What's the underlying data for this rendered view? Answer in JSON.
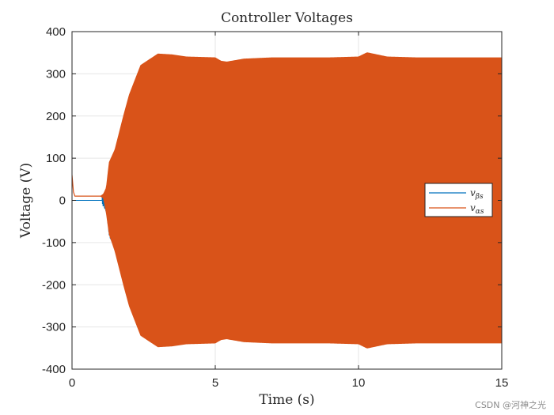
{
  "chart_data": {
    "type": "line",
    "title": "Controller Voltages",
    "xlabel": "Time (s)",
    "ylabel": "Voltage (V)",
    "xlim": [
      0,
      15
    ],
    "ylim": [
      -400,
      400
    ],
    "x_ticks": [
      0,
      5,
      10,
      15
    ],
    "y_ticks": [
      -400,
      -300,
      -200,
      -100,
      0,
      100,
      200,
      300,
      400
    ],
    "grid": true,
    "legend_position": "right",
    "series": [
      {
        "name": "v_βs",
        "color": "#0072BD",
        "description_points": {
          "t": [
            0,
            1.05,
            1.15,
            1.25,
            1.3,
            1.5
          ],
          "v": [
            0,
            0,
            10,
            -40,
            60,
            100
          ]
        }
      },
      {
        "name": "v_αs",
        "color": "#D95319",
        "envelope": {
          "t": [
            0,
            0.05,
            0.1,
            1.0,
            1.1,
            1.2,
            1.3,
            1.5,
            1.8,
            2.0,
            2.4,
            3.0,
            3.5,
            4.0,
            5.0,
            5.2,
            5.4,
            6.0,
            7.0,
            9.0,
            10.0,
            10.3,
            11.0,
            12.0,
            15.0
          ],
          "upper": [
            60,
            20,
            10,
            10,
            15,
            30,
            90,
            120,
            200,
            250,
            320,
            347,
            345,
            340,
            338,
            330,
            328,
            335,
            338,
            338,
            340,
            350,
            340,
            338,
            338
          ],
          "lower": [
            0,
            10,
            10,
            10,
            5,
            -30,
            -80,
            -120,
            -200,
            -250,
            -320,
            -347,
            -345,
            -340,
            -338,
            -330,
            -328,
            -335,
            -338,
            -338,
            -340,
            -350,
            -340,
            -338,
            -338
          ]
        }
      }
    ]
  },
  "legend": {
    "items": [
      {
        "label": "v",
        "sub": "βs",
        "color": "#0072BD"
      },
      {
        "label": "v",
        "sub": "αs",
        "color": "#D95319"
      }
    ]
  },
  "watermark": "CSDN @河神之光"
}
